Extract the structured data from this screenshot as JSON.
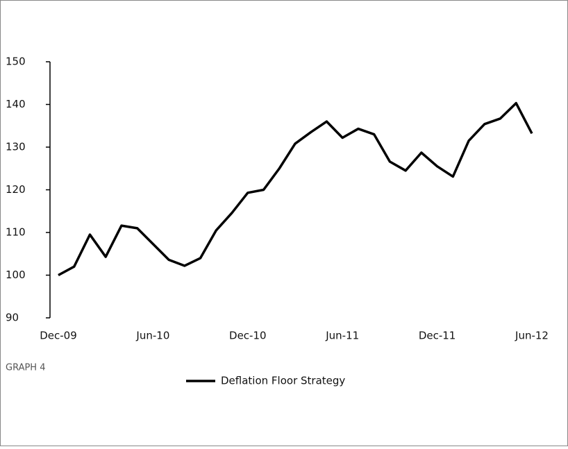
{
  "chart_data": {
    "type": "line",
    "caption": "GRAPH 4",
    "categories": [
      "Dec-09",
      null,
      null,
      null,
      null,
      null,
      "Jun-10",
      null,
      null,
      null,
      null,
      null,
      "Dec-10",
      null,
      null,
      null,
      null,
      null,
      "Jun-11",
      null,
      null,
      null,
      null,
      null,
      "Dec-11",
      null,
      null,
      null,
      null,
      null,
      "Jun-12"
    ],
    "series": [
      {
        "name": "Deflation Floor Strategy",
        "color": "#000000",
        "values": [
          100,
          102,
          109.5,
          104.3,
          111.6,
          111,
          107.3,
          103.6,
          102.2,
          104,
          110.5,
          114.6,
          119.3,
          120,
          125,
          130.8,
          133.5,
          136,
          132.2,
          134.3,
          133,
          126.6,
          124.5,
          128.7,
          125.5,
          123.1,
          131.5,
          135.4,
          136.7,
          140.3,
          133.2
        ]
      }
    ],
    "ylim": [
      90,
      150
    ],
    "yticks": [
      90,
      100,
      110,
      120,
      130,
      140,
      150
    ],
    "legend": "bottom"
  }
}
